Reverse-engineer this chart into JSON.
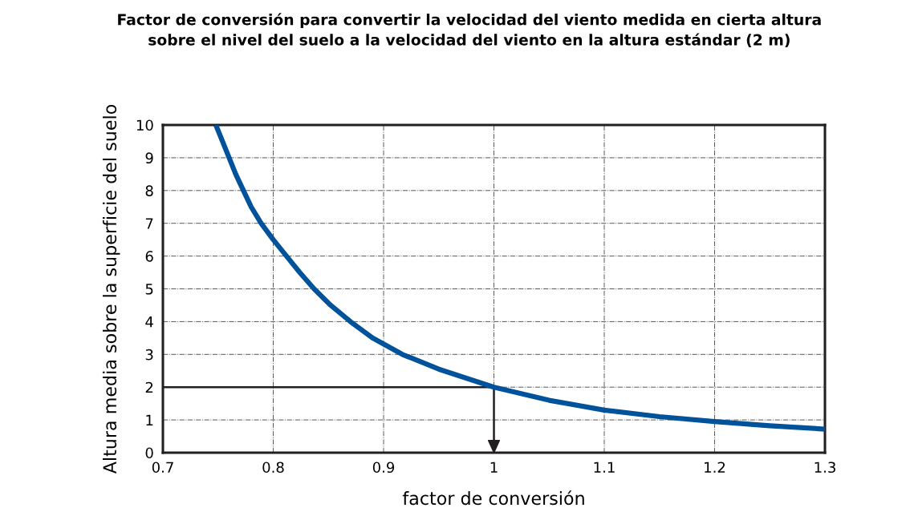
{
  "chart_data": {
    "type": "line",
    "title": "Factor de conversión para convertir la velocidad del viento medida en cierta altura\nsobre el nivel del suelo a la velocidad del viento en la altura estándar (2 m)",
    "xlabel": "factor de conversión",
    "ylabel": "Altura media sobre la superficie del suelo",
    "series": [
      {
        "color": "#00539b",
        "x": [
          0.748,
          0.754,
          0.76,
          0.766,
          0.773,
          0.78,
          0.789,
          0.8,
          0.812,
          0.824,
          0.837,
          0.852,
          0.87,
          0.89,
          0.917,
          0.95,
          1.0,
          1.05,
          1.1,
          1.15,
          1.2,
          1.25,
          1.3
        ],
        "values": [
          10,
          9.5,
          9,
          8.5,
          8,
          7.5,
          7,
          6.5,
          6,
          5.5,
          5,
          4.5,
          4,
          3.5,
          3,
          2.55,
          2.0,
          1.6,
          1.3,
          1.1,
          0.95,
          0.82,
          0.72
        ]
      },
      {
        "color": "#231f20",
        "x": [
          0.7,
          1.0,
          1.0
        ],
        "values": [
          2,
          2,
          0
        ]
      }
    ],
    "xlim": [
      0.7,
      1.3
    ],
    "xticks": [
      0.7,
      0.8,
      0.9,
      1,
      1.1,
      1.2,
      1.3
    ],
    "ylim": [
      0,
      10
    ],
    "yticks": [
      0,
      1,
      2,
      3,
      4,
      5,
      6,
      7,
      8,
      9,
      10
    ],
    "grid": true,
    "legend": false,
    "marker": "none",
    "line_style": "solid"
  }
}
